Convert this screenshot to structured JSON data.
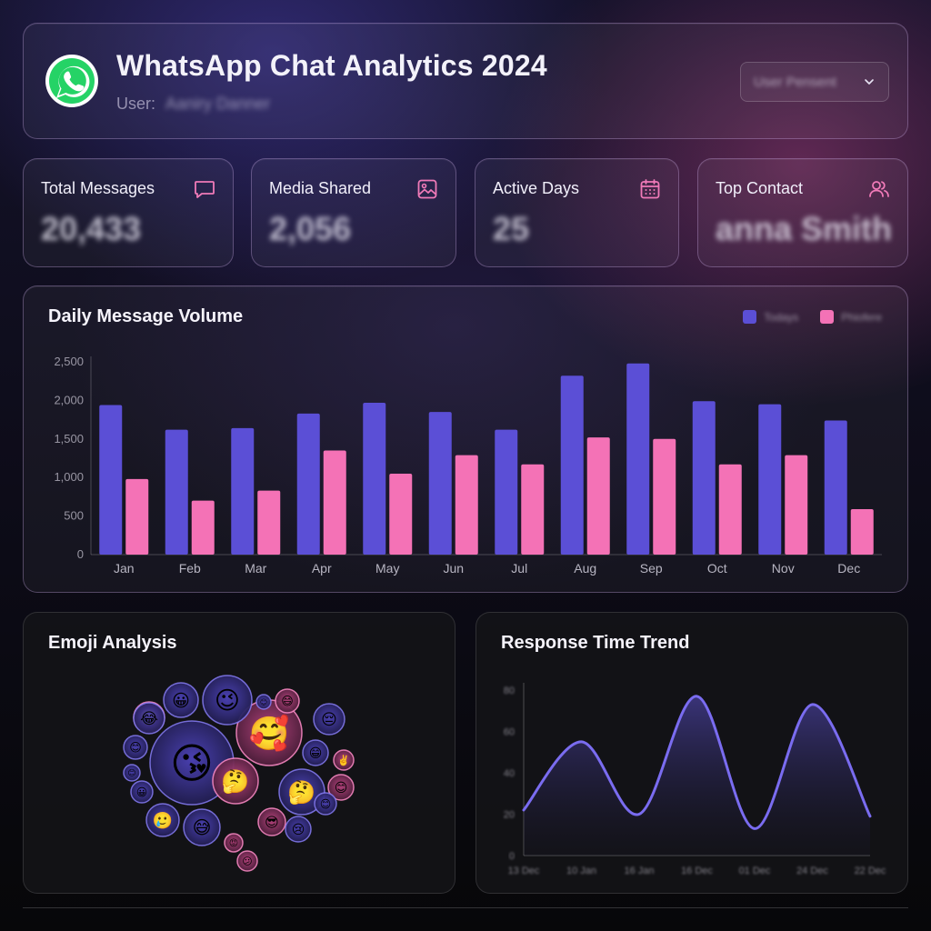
{
  "header": {
    "title": "WhatsApp Chat Analytics 2024",
    "user_label": "User:",
    "user_name": "Aaniry Danner",
    "user_select_value": "User Pensent"
  },
  "kpis": [
    {
      "label": "Total Messages",
      "value": "20,433",
      "icon": "message-icon"
    },
    {
      "label": "Media Shared",
      "value": "2,056",
      "icon": "image-icon"
    },
    {
      "label": "Active Days",
      "value": "25",
      "icon": "calendar-icon"
    },
    {
      "label": "Top Contact",
      "value": "anna Smith",
      "icon": "users-icon"
    }
  ],
  "daily_volume": {
    "title": "Daily Message Volume",
    "legend": [
      "Todays",
      "Phiofere"
    ]
  },
  "emoji_analysis": {
    "title": "Emoji Analysis"
  },
  "response_time": {
    "title": "Response Time Trend",
    "y_ticks": [
      "80",
      "60",
      "40",
      "20",
      "0"
    ],
    "x_ticks": [
      "13 Dec",
      "10 Jan",
      "16 Jan",
      "16 Dec",
      "01 Dec",
      "24 Dec",
      "22 Dec"
    ]
  },
  "colors": {
    "primary": "#5b4fd6",
    "secondary": "#f472b6",
    "whatsapp": "#25d366",
    "trend_line": "#7a6cf0"
  },
  "chart_data": [
    {
      "type": "bar",
      "title": "Daily Message Volume",
      "categories": [
        "Jan",
        "Feb",
        "Mar",
        "Apr",
        "May",
        "Jun",
        "Jul",
        "Aug",
        "Sep",
        "Oct",
        "Nov",
        "Dec"
      ],
      "series": [
        {
          "name": "Todays",
          "values": [
            1940,
            1620,
            1640,
            1830,
            1970,
            1850,
            1620,
            2320,
            2480,
            1990,
            1950,
            1740
          ]
        },
        {
          "name": "Phiofere",
          "values": [
            980,
            700,
            830,
            1350,
            1050,
            1290,
            1170,
            1520,
            1500,
            1170,
            1290,
            590
          ]
        }
      ],
      "y_ticks": [
        "2,500",
        "2,000",
        "1,500",
        "1,000",
        "500",
        "0"
      ],
      "ylim": [
        0,
        2500
      ],
      "grid": false,
      "legend": "top-right"
    },
    {
      "type": "area",
      "title": "Response Time Trend",
      "x": [
        "13 Dec",
        "10 Jan",
        "16 Jan",
        "16 Dec",
        "01 Dec",
        "24 Dec",
        "22 Dec"
      ],
      "points": [
        22,
        55,
        20,
        77,
        13,
        73,
        19
      ],
      "ylim": [
        0,
        80
      ],
      "grid": false
    }
  ],
  "emojis": [
    {
      "glyph": "😘",
      "size": "xl",
      "tone": "blue"
    },
    {
      "glyph": "🥰",
      "size": "l",
      "tone": "pink"
    },
    {
      "glyph": "😉",
      "size": "m",
      "tone": "blue"
    },
    {
      "glyph": "🤔",
      "size": "m",
      "tone": "blue"
    },
    {
      "glyph": "🤔",
      "size": "m",
      "tone": "pink"
    },
    {
      "glyph": "🥲",
      "size": "s",
      "tone": "pink"
    },
    {
      "glyph": "😅",
      "size": "s",
      "tone": "blue"
    },
    {
      "glyph": "😀",
      "size": "s",
      "tone": "blue"
    },
    {
      "glyph": "😂",
      "size": "s",
      "tone": "blue"
    },
    {
      "glyph": "🥲",
      "size": "s",
      "tone": "blue"
    },
    {
      "glyph": "😄",
      "size": "xs",
      "tone": "pink"
    },
    {
      "glyph": "😁",
      "size": "xs",
      "tone": "blue"
    },
    {
      "glyph": "😊",
      "size": "xs",
      "tone": "pink"
    },
    {
      "glyph": "😎",
      "size": "xs",
      "tone": "pink"
    },
    {
      "glyph": "😢",
      "size": "xs",
      "tone": "blue"
    },
    {
      "glyph": "😔",
      "size": "xs",
      "tone": "blue"
    },
    {
      "glyph": "😊",
      "size": "xs",
      "tone": "blue"
    },
    {
      "glyph": "😀",
      "size": "xs",
      "tone": "blue"
    },
    {
      "glyph": "✌️",
      "size": "xxs",
      "tone": "pink"
    },
    {
      "glyph": "😊",
      "size": "xxs",
      "tone": "blue"
    },
    {
      "glyph": "😊",
      "size": "xxs",
      "tone": "blue"
    },
    {
      "glyph": "😡",
      "size": "xxs",
      "tone": "pink"
    },
    {
      "glyph": "😕",
      "size": "xxs",
      "tone": "pink"
    },
    {
      "glyph": "😊",
      "size": "xxs",
      "tone": "blue"
    }
  ]
}
